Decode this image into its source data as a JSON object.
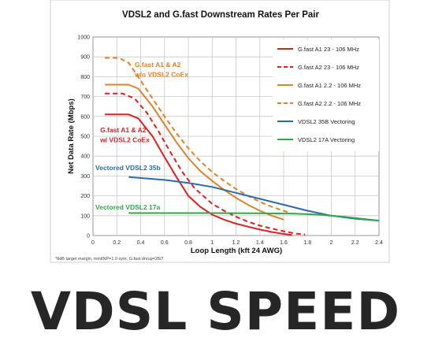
{
  "banner": {
    "text": "VDSL SPEED"
  },
  "chart_data": {
    "type": "line",
    "title": "VDSL2 and G.fast Downstream Rates Per Pair",
    "xlabel": "Loop Length (kft 24 AWG)",
    "ylabel": "Net Data Rate (Mbps)",
    "xlim": [
      0,
      2.4
    ],
    "ylim": [
      0,
      1000
    ],
    "x_ticks": [
      "0",
      "0.2",
      "0.4",
      "0.6",
      "0.8",
      "1",
      "1.2",
      "1.4",
      "1.6",
      "1.8",
      "2",
      "2.2",
      "2.4"
    ],
    "y_ticks": [
      "0",
      "100",
      "200",
      "300",
      "400",
      "500",
      "600",
      "700",
      "800",
      "900",
      "1000"
    ],
    "grid": true,
    "legend_position": "right",
    "footnote": "*8dB target margin, miniINP=1.0 sym, G.fast dn/up=28/7",
    "series": [
      {
        "name": "G.fast A1 23 - 106 MHz",
        "color": "#e02020",
        "dash": false,
        "points": [
          [
            0.1,
            610
          ],
          [
            0.3,
            610
          ],
          [
            0.38,
            590
          ],
          [
            0.5,
            500
          ],
          [
            0.6,
            395
          ],
          [
            0.7,
            295
          ],
          [
            0.8,
            200
          ],
          [
            0.9,
            145
          ],
          [
            1.0,
            105
          ],
          [
            1.1,
            80
          ],
          [
            1.2,
            60
          ],
          [
            1.3,
            45
          ],
          [
            1.4,
            30
          ],
          [
            1.5,
            18
          ],
          [
            1.6,
            8
          ],
          [
            1.67,
            3
          ]
        ]
      },
      {
        "name": "G.fast A2 23 - 106 MHz",
        "color": "#e02020",
        "dash": true,
        "points": [
          [
            0.1,
            715
          ],
          [
            0.25,
            715
          ],
          [
            0.35,
            690
          ],
          [
            0.45,
            620
          ],
          [
            0.55,
            525
          ],
          [
            0.65,
            420
          ],
          [
            0.75,
            320
          ],
          [
            0.85,
            240
          ],
          [
            1.0,
            160
          ],
          [
            1.1,
            125
          ],
          [
            1.2,
            95
          ],
          [
            1.3,
            70
          ],
          [
            1.4,
            50
          ],
          [
            1.5,
            35
          ],
          [
            1.6,
            22
          ],
          [
            1.7,
            10
          ],
          [
            1.78,
            5
          ]
        ]
      },
      {
        "name": "G.fast A1 2.2 - 106 MHz",
        "color": "#e0822a",
        "dash": false,
        "points": [
          [
            0.1,
            760
          ],
          [
            0.3,
            760
          ],
          [
            0.38,
            740
          ],
          [
            0.5,
            650
          ],
          [
            0.6,
            560
          ],
          [
            0.7,
            470
          ],
          [
            0.8,
            390
          ],
          [
            0.9,
            325
          ],
          [
            1.0,
            275
          ],
          [
            1.1,
            230
          ],
          [
            1.2,
            190
          ],
          [
            1.3,
            155
          ],
          [
            1.4,
            125
          ],
          [
            1.5,
            100
          ],
          [
            1.6,
            80
          ]
        ]
      },
      {
        "name": "G.fast A2 2.2 - 106 MHz",
        "color": "#e0822a",
        "dash": true,
        "points": [
          [
            0.1,
            895
          ],
          [
            0.22,
            895
          ],
          [
            0.3,
            870
          ],
          [
            0.4,
            780
          ],
          [
            0.5,
            690
          ],
          [
            0.6,
            600
          ],
          [
            0.7,
            515
          ],
          [
            0.8,
            440
          ],
          [
            0.9,
            375
          ],
          [
            1.0,
            320
          ],
          [
            1.1,
            275
          ],
          [
            1.2,
            235
          ],
          [
            1.3,
            200
          ],
          [
            1.4,
            170
          ],
          [
            1.5,
            145
          ],
          [
            1.6,
            125
          ],
          [
            1.65,
            115
          ]
        ]
      },
      {
        "name": "VDSL2 35B Vectoring",
        "color": "#2a6ab0",
        "dash": false,
        "points": [
          [
            0.3,
            295
          ],
          [
            0.6,
            280
          ],
          [
            0.8,
            265
          ],
          [
            1.0,
            245
          ],
          [
            1.2,
            215
          ],
          [
            1.4,
            185
          ],
          [
            1.6,
            155
          ],
          [
            1.8,
            125
          ],
          [
            2.0,
            100
          ],
          [
            2.2,
            85
          ],
          [
            2.4,
            75
          ]
        ]
      },
      {
        "name": "VDSL2 17A Vectoring",
        "color": "#2ea84a",
        "dash": false,
        "points": [
          [
            0.3,
            113
          ],
          [
            0.6,
            113
          ],
          [
            1.0,
            113
          ],
          [
            1.4,
            112
          ],
          [
            1.7,
            110
          ],
          [
            1.9,
            105
          ],
          [
            2.1,
            95
          ],
          [
            2.25,
            85
          ],
          [
            2.4,
            75
          ]
        ]
      }
    ],
    "annotations": [
      {
        "text": "G.fast A1 & A2",
        "color": "#e0822a",
        "x": 0.35,
        "y": 850
      },
      {
        "text": "w/o VDSL2 CoEx",
        "color": "#e0822a",
        "x": 0.35,
        "y": 800
      },
      {
        "text": "G.fast A1 & A2",
        "color": "#e02020",
        "x": 0.06,
        "y": 520
      },
      {
        "text": "w/ VDSL2 CoEx",
        "color": "#e02020",
        "x": 0.06,
        "y": 470
      },
      {
        "text": "Vectored VDSL2 35b",
        "color": "#2a6ab0",
        "x": 0.02,
        "y": 330
      },
      {
        "text": "Vectored VDSL2 17a",
        "color": "#2ea84a",
        "x": 0.02,
        "y": 130
      }
    ]
  }
}
